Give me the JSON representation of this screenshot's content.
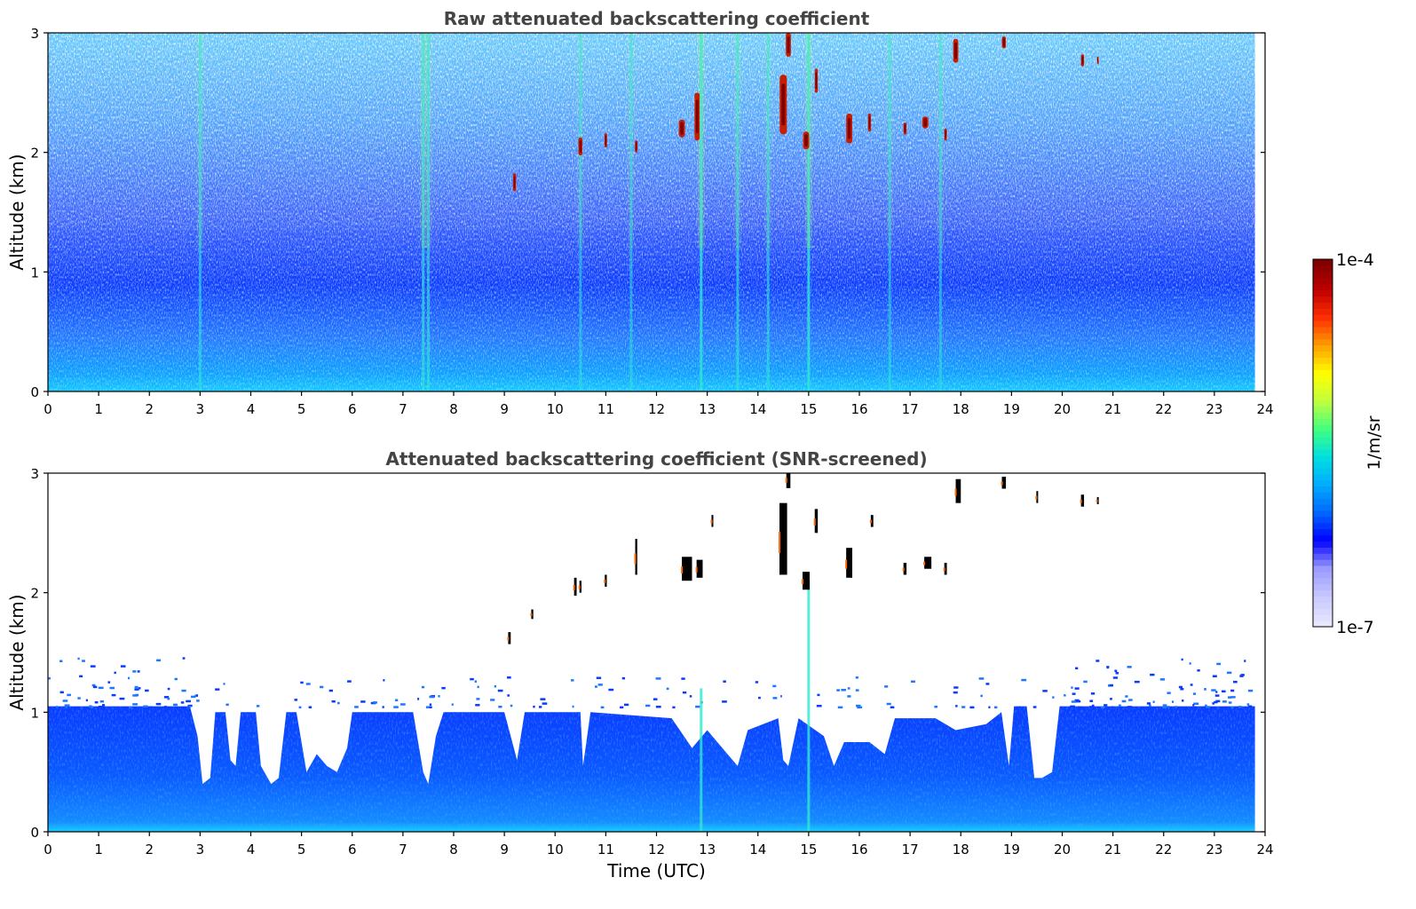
{
  "chart_data": [
    {
      "type": "heatmap",
      "title": "Raw attenuated backscattering coefficient",
      "xlabel": "",
      "ylabel": "Altitude (km)",
      "xlim": [
        0,
        24
      ],
      "ylim": [
        0,
        3
      ],
      "x_ticks": [
        0,
        1,
        2,
        3,
        4,
        5,
        6,
        7,
        8,
        9,
        10,
        11,
        12,
        13,
        14,
        15,
        16,
        17,
        18,
        19,
        20,
        21,
        22,
        23,
        24
      ],
      "y_ticks": [
        0,
        1,
        2,
        3
      ],
      "x_tick_labels": [
        "0",
        "1",
        "2",
        "3",
        "4",
        "5",
        "6",
        "7",
        "8",
        "9",
        "10",
        "11",
        "12",
        "13",
        "14",
        "15",
        "16",
        "17",
        "18",
        "19",
        "20",
        "21",
        "22",
        "23",
        "24"
      ],
      "y_tick_labels": [
        "0",
        "1",
        "2",
        "3"
      ],
      "data_end_time": 23.8,
      "vertical_streaks": [
        {
          "time": 3.0,
          "top_km": 3.0,
          "strength": 0.5
        },
        {
          "time": 7.4,
          "top_km": 3.0,
          "strength": 0.7
        },
        {
          "time": 7.5,
          "top_km": 3.0,
          "strength": 0.6
        },
        {
          "time": 10.5,
          "top_km": 3.0,
          "strength": 0.4
        },
        {
          "time": 11.5,
          "top_km": 3.0,
          "strength": 0.4
        },
        {
          "time": 12.88,
          "top_km": 3.0,
          "strength": 1.0
        },
        {
          "time": 13.6,
          "top_km": 3.0,
          "strength": 0.6
        },
        {
          "time": 14.2,
          "top_km": 3.0,
          "strength": 0.5
        },
        {
          "time": 15.0,
          "top_km": 3.0,
          "strength": 1.0
        },
        {
          "time": 16.6,
          "top_km": 3.0,
          "strength": 0.4
        },
        {
          "time": 17.6,
          "top_km": 3.0,
          "strength": 0.4
        }
      ],
      "cloud_patches": [
        {
          "time": 9.2,
          "alt_km": 1.75,
          "width_h": 0.06,
          "height_km": 0.15
        },
        {
          "time": 10.5,
          "alt_km": 2.05,
          "width_h": 0.08,
          "height_km": 0.15
        },
        {
          "time": 11.0,
          "alt_km": 2.1,
          "width_h": 0.05,
          "height_km": 0.12
        },
        {
          "time": 11.6,
          "alt_km": 2.05,
          "width_h": 0.05,
          "height_km": 0.1
        },
        {
          "time": 12.5,
          "alt_km": 2.2,
          "width_h": 0.12,
          "height_km": 0.15
        },
        {
          "time": 12.8,
          "alt_km": 2.3,
          "width_h": 0.1,
          "height_km": 0.4
        },
        {
          "time": 14.5,
          "alt_km": 2.4,
          "width_h": 0.14,
          "height_km": 0.5
        },
        {
          "time": 14.6,
          "alt_km": 2.9,
          "width_h": 0.1,
          "height_km": 0.2
        },
        {
          "time": 14.95,
          "alt_km": 2.1,
          "width_h": 0.12,
          "height_km": 0.15
        },
        {
          "time": 15.15,
          "alt_km": 2.6,
          "width_h": 0.06,
          "height_km": 0.2
        },
        {
          "time": 15.8,
          "alt_km": 2.2,
          "width_h": 0.12,
          "height_km": 0.25
        },
        {
          "time": 16.2,
          "alt_km": 2.25,
          "width_h": 0.06,
          "height_km": 0.15
        },
        {
          "time": 16.9,
          "alt_km": 2.2,
          "width_h": 0.06,
          "height_km": 0.1
        },
        {
          "time": 17.3,
          "alt_km": 2.25,
          "width_h": 0.12,
          "height_km": 0.1
        },
        {
          "time": 17.7,
          "alt_km": 2.15,
          "width_h": 0.05,
          "height_km": 0.1
        },
        {
          "time": 17.9,
          "alt_km": 2.85,
          "width_h": 0.1,
          "height_km": 0.2
        },
        {
          "time": 18.85,
          "alt_km": 2.92,
          "width_h": 0.08,
          "height_km": 0.1
        },
        {
          "time": 20.4,
          "alt_km": 2.77,
          "width_h": 0.06,
          "height_km": 0.1
        },
        {
          "time": 20.7,
          "alt_km": 2.77,
          "width_h": 0.03,
          "height_km": 0.06
        }
      ]
    },
    {
      "type": "heatmap",
      "title": "Attenuated backscattering coefficient (SNR-screened)",
      "xlabel": "Time (UTC)",
      "ylabel": "Altitude (km)",
      "xlim": [
        0,
        24
      ],
      "ylim": [
        0,
        3
      ],
      "x_ticks": [
        0,
        1,
        2,
        3,
        4,
        5,
        6,
        7,
        8,
        9,
        10,
        11,
        12,
        13,
        14,
        15,
        16,
        17,
        18,
        19,
        20,
        21,
        22,
        23,
        24
      ],
      "y_ticks": [
        0,
        1,
        2,
        3
      ],
      "x_tick_labels": [
        "0",
        "1",
        "2",
        "3",
        "4",
        "5",
        "6",
        "7",
        "8",
        "9",
        "10",
        "11",
        "12",
        "13",
        "14",
        "15",
        "16",
        "17",
        "18",
        "19",
        "20",
        "21",
        "22",
        "23",
        "24"
      ],
      "y_tick_labels": [
        "0",
        "1",
        "2",
        "3"
      ],
      "data_end_time": 23.8,
      "boundary_layer_top_km": [
        [
          0.0,
          1.05
        ],
        [
          1.0,
          1.05
        ],
        [
          2.0,
          1.05
        ],
        [
          2.8,
          1.05
        ],
        [
          2.95,
          0.8
        ],
        [
          3.05,
          0.4
        ],
        [
          3.2,
          0.45
        ],
        [
          3.3,
          1.0
        ],
        [
          3.5,
          1.0
        ],
        [
          3.6,
          0.6
        ],
        [
          3.7,
          0.55
        ],
        [
          3.8,
          1.0
        ],
        [
          4.1,
          1.0
        ],
        [
          4.2,
          0.55
        ],
        [
          4.4,
          0.4
        ],
        [
          4.55,
          0.45
        ],
        [
          4.7,
          1.0
        ],
        [
          4.9,
          1.0
        ],
        [
          5.1,
          0.5
        ],
        [
          5.3,
          0.65
        ],
        [
          5.5,
          0.55
        ],
        [
          5.7,
          0.5
        ],
        [
          5.9,
          0.7
        ],
        [
          6.0,
          1.0
        ],
        [
          7.2,
          1.0
        ],
        [
          7.4,
          0.5
        ],
        [
          7.5,
          0.4
        ],
        [
          7.65,
          0.8
        ],
        [
          7.8,
          1.0
        ],
        [
          9.0,
          1.0
        ],
        [
          9.25,
          0.6
        ],
        [
          9.4,
          1.0
        ],
        [
          10.5,
          1.0
        ],
        [
          10.55,
          0.55
        ],
        [
          10.7,
          1.0
        ],
        [
          12.3,
          0.95
        ],
        [
          12.7,
          0.7
        ],
        [
          13.0,
          0.85
        ],
        [
          13.5,
          0.6
        ],
        [
          13.6,
          0.55
        ],
        [
          13.8,
          0.85
        ],
        [
          14.4,
          0.95
        ],
        [
          14.5,
          0.6
        ],
        [
          14.6,
          0.55
        ],
        [
          14.8,
          0.95
        ],
        [
          15.3,
          0.8
        ],
        [
          15.5,
          0.55
        ],
        [
          15.7,
          0.75
        ],
        [
          16.2,
          0.75
        ],
        [
          16.5,
          0.65
        ],
        [
          16.7,
          0.95
        ],
        [
          17.5,
          0.95
        ],
        [
          17.9,
          0.85
        ],
        [
          18.5,
          0.9
        ],
        [
          18.8,
          1.0
        ],
        [
          18.95,
          0.55
        ],
        [
          19.05,
          1.05
        ],
        [
          19.3,
          1.05
        ],
        [
          19.45,
          0.45
        ],
        [
          19.6,
          0.45
        ],
        [
          19.8,
          0.5
        ],
        [
          19.95,
          1.05
        ],
        [
          23.8,
          1.05
        ]
      ],
      "cloud_patches": [
        {
          "time": 9.1,
          "alt_km": 1.62,
          "width_h": 0.05,
          "height_km": 0.1
        },
        {
          "time": 9.55,
          "alt_km": 1.82,
          "width_h": 0.04,
          "height_km": 0.08
        },
        {
          "time": 10.4,
          "alt_km": 2.05,
          "width_h": 0.05,
          "height_km": 0.15
        },
        {
          "time": 10.5,
          "alt_km": 2.05,
          "width_h": 0.04,
          "height_km": 0.1
        },
        {
          "time": 11.0,
          "alt_km": 2.1,
          "width_h": 0.04,
          "height_km": 0.1
        },
        {
          "time": 11.6,
          "alt_km": 2.3,
          "width_h": 0.04,
          "height_km": 0.3
        },
        {
          "time": 12.6,
          "alt_km": 2.2,
          "width_h": 0.2,
          "height_km": 0.2
        },
        {
          "time": 12.85,
          "alt_km": 2.2,
          "width_h": 0.12,
          "height_km": 0.15
        },
        {
          "time": 13.1,
          "alt_km": 2.6,
          "width_h": 0.03,
          "height_km": 0.1
        },
        {
          "time": 14.5,
          "alt_km": 2.45,
          "width_h": 0.15,
          "height_km": 0.6
        },
        {
          "time": 14.6,
          "alt_km": 2.95,
          "width_h": 0.08,
          "height_km": 0.15
        },
        {
          "time": 14.95,
          "alt_km": 2.1,
          "width_h": 0.14,
          "height_km": 0.15
        },
        {
          "time": 15.15,
          "alt_km": 2.6,
          "width_h": 0.06,
          "height_km": 0.2
        },
        {
          "time": 15.8,
          "alt_km": 2.25,
          "width_h": 0.12,
          "height_km": 0.25
        },
        {
          "time": 16.25,
          "alt_km": 2.6,
          "width_h": 0.05,
          "height_km": 0.1
        },
        {
          "time": 16.9,
          "alt_km": 2.2,
          "width_h": 0.06,
          "height_km": 0.1
        },
        {
          "time": 17.35,
          "alt_km": 2.25,
          "width_h": 0.14,
          "height_km": 0.1
        },
        {
          "time": 17.7,
          "alt_km": 2.2,
          "width_h": 0.05,
          "height_km": 0.1
        },
        {
          "time": 17.95,
          "alt_km": 2.85,
          "width_h": 0.1,
          "height_km": 0.2
        },
        {
          "time": 18.85,
          "alt_km": 2.92,
          "width_h": 0.08,
          "height_km": 0.1
        },
        {
          "time": 19.5,
          "alt_km": 2.8,
          "width_h": 0.02,
          "height_km": 0.1
        },
        {
          "time": 20.4,
          "alt_km": 2.77,
          "width_h": 0.06,
          "height_km": 0.1
        },
        {
          "time": 20.7,
          "alt_km": 2.77,
          "width_h": 0.03,
          "height_km": 0.06
        }
      ]
    }
  ],
  "colorbar": {
    "label": "1/m/sr",
    "min_label": "1e-7",
    "max_label": "1e-4",
    "scale": "log",
    "range": [
      1e-07,
      0.0001
    ],
    "colormap": [
      "#e6e6ff",
      "#c8c8ff",
      "#9a9aff",
      "#0000ff",
      "#0066ff",
      "#00aaff",
      "#00e0e0",
      "#40ff80",
      "#c0ff40",
      "#ffff00",
      "#ffa000",
      "#ff3000",
      "#c00000",
      "#800000"
    ]
  }
}
